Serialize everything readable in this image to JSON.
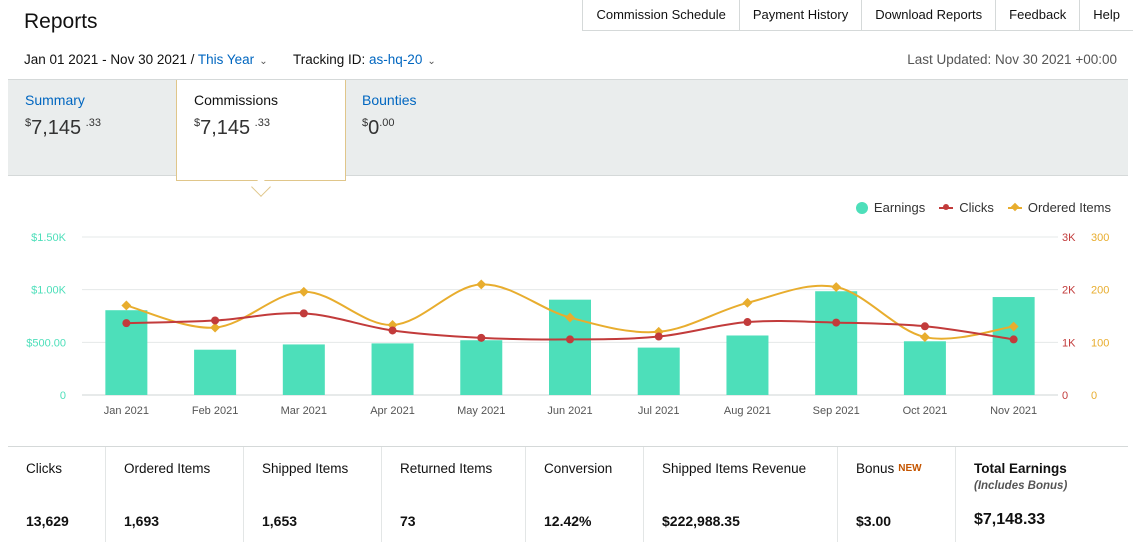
{
  "header": {
    "title": "Reports",
    "nav": [
      "Commission Schedule",
      "Payment History",
      "Download Reports",
      "Feedback",
      "Help"
    ]
  },
  "filters": {
    "date_range": "Jan 01 2021 - Nov 30 2021 /",
    "period": "This Year",
    "tracking_label": "Tracking ID:",
    "tracking_id": "as-hq-20",
    "last_updated": "Last Updated: Nov 30 2021 +00:00"
  },
  "tabs": [
    {
      "label": "Summary",
      "currency": "$",
      "amount": "7,145",
      "cents": ".33"
    },
    {
      "label": "Commissions",
      "currency": "$",
      "amount": "7,145",
      "cents": ".33"
    },
    {
      "label": "Bounties",
      "currency": "$",
      "amount": "0",
      "cents": ".00"
    }
  ],
  "colors": {
    "earnings": "#4ddfba",
    "clicks": "#c23b3b",
    "ordered_items": "#e8ad2e",
    "link": "#0066c0",
    "new_badge": "#c45500"
  },
  "chart_data": {
    "type": "bar",
    "categories": [
      "Jan 2021",
      "Feb 2021",
      "Mar 2021",
      "Apr 2021",
      "May 2021",
      "Jun 2021",
      "Jul 2021",
      "Aug 2021",
      "Sep 2021",
      "Oct 2021",
      "Nov 2021"
    ],
    "legend": [
      "Earnings",
      "Clicks",
      "Ordered Items"
    ],
    "legend_position": "top-right",
    "grid": true,
    "series": [
      {
        "name": "Earnings",
        "type": "bar",
        "axis": "left",
        "values": [
          805,
          430,
          480,
          490,
          520,
          905,
          450,
          565,
          985,
          510,
          930
        ]
      },
      {
        "name": "Clicks",
        "type": "line",
        "axis": "right",
        "values": [
          1365,
          1415,
          1550,
          1225,
          1085,
          1055,
          1110,
          1385,
          1375,
          1305,
          1055
        ]
      },
      {
        "name": "Ordered Items",
        "type": "line",
        "axis": "right2",
        "values": [
          170,
          128,
          196,
          133,
          210,
          147,
          120,
          175,
          205,
          110,
          130
        ]
      }
    ],
    "y_left": {
      "ticks": [
        "0",
        "$500.00",
        "$1.00K",
        "$1.50K"
      ],
      "ylim": [
        0,
        1500
      ]
    },
    "y_right": {
      "ticks": [
        "0",
        "1K",
        "2K",
        "3K"
      ],
      "ylim": [
        0,
        3000
      ]
    },
    "y_right2": {
      "ticks": [
        "0",
        "100",
        "200",
        "300"
      ],
      "ylim": [
        0,
        300
      ]
    }
  },
  "stats": [
    {
      "label": "Clicks",
      "value": "13,629"
    },
    {
      "label": "Ordered Items",
      "value": "1,693"
    },
    {
      "label": "Shipped Items",
      "value": "1,653"
    },
    {
      "label": "Returned Items",
      "value": "73"
    },
    {
      "label": "Conversion",
      "value": "12.42%"
    },
    {
      "label": "Shipped Items Revenue",
      "value": "$222,988.35"
    },
    {
      "label": "Bonus",
      "badge": "NEW",
      "value": "$3.00"
    },
    {
      "label": "Total Earnings",
      "sub": "(Includes Bonus)",
      "value": "$7,148.33"
    }
  ]
}
